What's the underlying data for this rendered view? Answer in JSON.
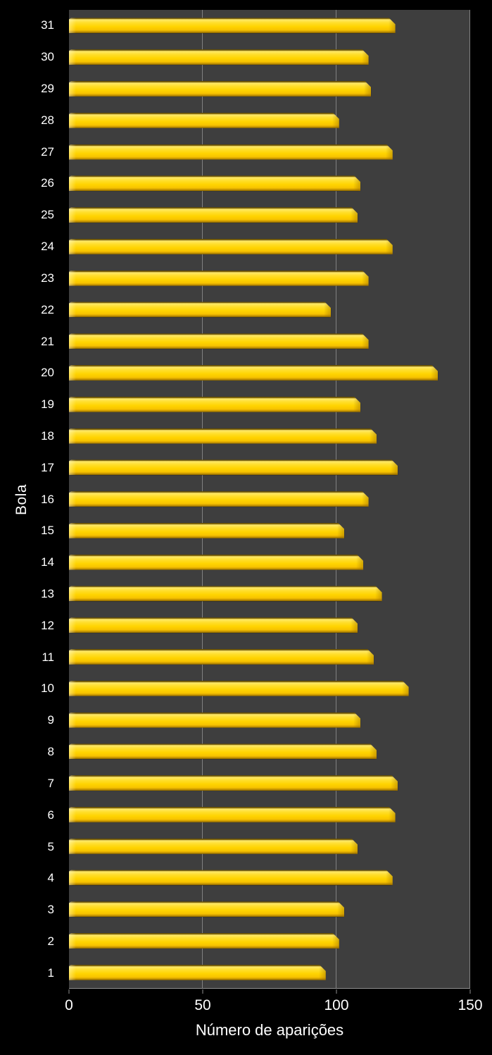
{
  "colors": {
    "page_bg": "#000000",
    "plot_bg": "#3E3E3E",
    "grid": "#9E9E9E",
    "axis_line": "#8E8E8E",
    "text": "#FFFFFF",
    "bar_main": "#FFD400",
    "bar_highlight": "#FFE96A",
    "bar_edge_dark": "#7A5C00"
  },
  "chart_data": {
    "type": "bar",
    "orientation": "horizontal",
    "title": "",
    "xlabel": "Número de aparições",
    "ylabel": "Bola",
    "xlim": [
      0,
      150
    ],
    "xticks": [
      0,
      50,
      100,
      150
    ],
    "grid": true,
    "legend": false,
    "categories": [
      31,
      30,
      29,
      28,
      27,
      26,
      25,
      24,
      23,
      22,
      21,
      20,
      19,
      18,
      17,
      16,
      15,
      14,
      13,
      12,
      11,
      10,
      9,
      8,
      7,
      6,
      5,
      4,
      3,
      2,
      1
    ],
    "values": [
      122,
      112,
      113,
      101,
      121,
      109,
      108,
      121,
      112,
      98,
      112,
      138,
      109,
      115,
      123,
      112,
      103,
      110,
      117,
      108,
      114,
      127,
      109,
      115,
      123,
      122,
      108,
      121,
      103,
      101,
      96
    ]
  }
}
